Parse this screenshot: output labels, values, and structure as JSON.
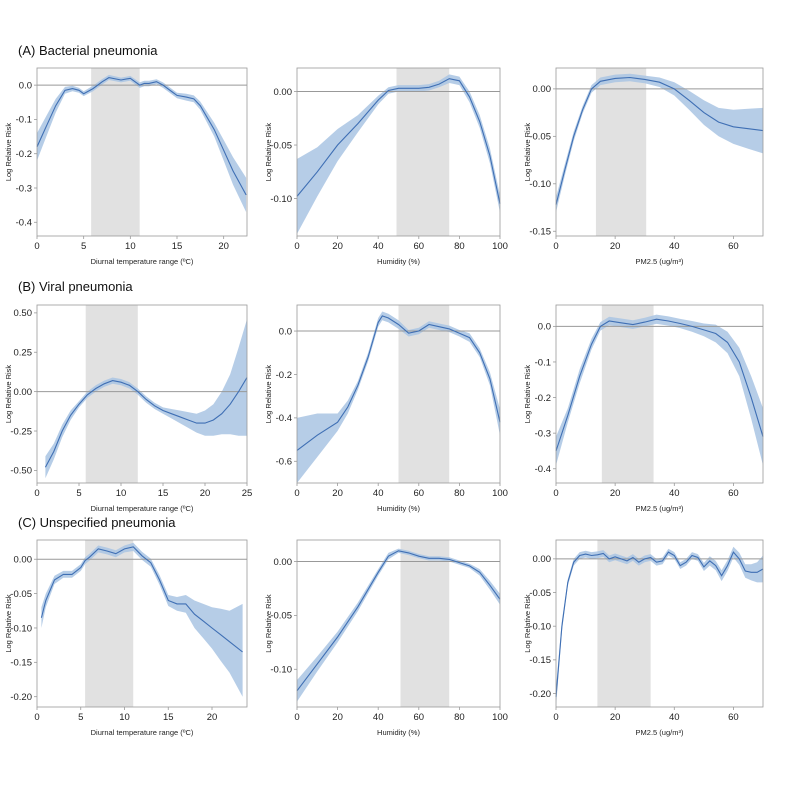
{
  "row_titles": [
    "(A) Bacterial pneumonia",
    "(B) Viral pneumonia",
    "(C) Unspecified pneumonia"
  ],
  "colors": {
    "line": "#3f6fb4",
    "band": "#a9c4e3",
    "shade": "#e1e1e1",
    "ref": "#999999",
    "axis": "#999999"
  },
  "chart_data": [
    {
      "type": "line",
      "row": 0,
      "col": 0,
      "xlabel": "Diurnal temperature range (ºC)",
      "ylabel": "Log Relative Risk",
      "xlim": [
        0,
        22.5
      ],
      "ylim": [
        -0.44,
        0.05
      ],
      "xticks": [
        0,
        5,
        10,
        15,
        20
      ],
      "yticks": [
        0.0,
        -0.1,
        -0.2,
        -0.3,
        -0.4
      ],
      "shaded_region": [
        5.8,
        11
      ],
      "x": [
        0,
        1,
        2,
        3,
        3.8,
        4.5,
        5,
        6,
        7,
        7.7,
        9,
        10,
        11,
        11.5,
        12,
        12.8,
        13.5,
        14.5,
        15,
        16,
        16.8,
        17.5,
        19,
        20,
        21,
        22.4
      ],
      "y": [
        -0.18,
        -0.12,
        -0.06,
        -0.015,
        -0.01,
        -0.015,
        -0.025,
        -0.01,
        0.01,
        0.022,
        0.015,
        0.02,
        0.0,
        0.005,
        0.005,
        0.01,
        0.0,
        -0.02,
        -0.03,
        -0.035,
        -0.04,
        -0.06,
        -0.13,
        -0.19,
        -0.25,
        -0.32
      ],
      "lower": [
        -0.22,
        -0.15,
        -0.08,
        -0.025,
        -0.018,
        -0.022,
        -0.032,
        -0.018,
        0.002,
        0.015,
        0.008,
        0.013,
        -0.008,
        -0.003,
        -0.003,
        0.003,
        -0.008,
        -0.028,
        -0.038,
        -0.045,
        -0.05,
        -0.072,
        -0.15,
        -0.22,
        -0.29,
        -0.37
      ],
      "upper": [
        -0.14,
        -0.09,
        -0.04,
        -0.005,
        -0.002,
        -0.008,
        -0.018,
        -0.002,
        0.018,
        0.03,
        0.022,
        0.027,
        0.008,
        0.013,
        0.013,
        0.017,
        0.008,
        -0.012,
        -0.022,
        -0.025,
        -0.03,
        -0.048,
        -0.11,
        -0.16,
        -0.21,
        -0.27
      ]
    },
    {
      "type": "line",
      "row": 0,
      "col": 1,
      "xlabel": "Humidity (%)",
      "ylabel": "Log Relative Risk",
      "xlim": [
        0,
        100
      ],
      "ylim": [
        -0.135,
        0.022
      ],
      "xticks": [
        0,
        20,
        40,
        60,
        80,
        100
      ],
      "yticks": [
        0.0,
        -0.05,
        -0.1
      ],
      "shaded_region": [
        49,
        75
      ],
      "x": [
        0,
        10,
        20,
        30,
        40,
        45,
        50,
        55,
        60,
        65,
        70,
        75,
        80,
        85,
        90,
        95,
        100
      ],
      "y": [
        -0.098,
        -0.075,
        -0.05,
        -0.03,
        -0.008,
        0.001,
        0.003,
        0.003,
        0.003,
        0.004,
        0.007,
        0.012,
        0.01,
        -0.005,
        -0.028,
        -0.06,
        -0.105
      ],
      "lower": [
        -0.133,
        -0.098,
        -0.065,
        -0.038,
        -0.012,
        -0.002,
        0.0,
        0.0,
        0.0,
        0.001,
        0.004,
        0.008,
        0.006,
        -0.01,
        -0.034,
        -0.067,
        -0.113
      ],
      "upper": [
        -0.063,
        -0.052,
        -0.035,
        -0.022,
        -0.004,
        0.004,
        0.006,
        0.006,
        0.006,
        0.007,
        0.01,
        0.016,
        0.014,
        0.0,
        -0.022,
        -0.053,
        -0.097
      ]
    },
    {
      "type": "line",
      "row": 0,
      "col": 2,
      "xlabel": "PM2.5 (ug/m³)",
      "ylabel": "Log Relative Risk",
      "xlim": [
        0,
        70
      ],
      "ylim": [
        -0.155,
        0.022
      ],
      "xticks": [
        0,
        20,
        40,
        60
      ],
      "yticks": [
        0.0,
        -0.05,
        -0.1,
        -0.15
      ],
      "shaded_region": [
        13.5,
        30.5
      ],
      "x": [
        0,
        3,
        6,
        9,
        12,
        15,
        20,
        25,
        30,
        35,
        40,
        45,
        50,
        55,
        60,
        65,
        70
      ],
      "y": [
        -0.122,
        -0.085,
        -0.05,
        -0.022,
        0.0,
        0.008,
        0.011,
        0.012,
        0.01,
        0.007,
        0.0,
        -0.012,
        -0.025,
        -0.035,
        -0.04,
        -0.042,
        -0.044
      ],
      "lower": [
        -0.13,
        -0.091,
        -0.055,
        -0.026,
        -0.004,
        0.004,
        0.007,
        0.008,
        0.006,
        0.002,
        -0.007,
        -0.022,
        -0.038,
        -0.05,
        -0.058,
        -0.063,
        -0.068
      ],
      "upper": [
        -0.114,
        -0.079,
        -0.045,
        -0.018,
        0.004,
        0.012,
        0.015,
        0.016,
        0.014,
        0.012,
        0.007,
        -0.002,
        -0.012,
        -0.02,
        -0.022,
        -0.021,
        -0.02
      ]
    },
    {
      "type": "line",
      "row": 1,
      "col": 0,
      "xlabel": "Diurnal temperature range (ºC)",
      "ylabel": "Log Relative Risk",
      "xlim": [
        0,
        25
      ],
      "ylim": [
        -0.58,
        0.55
      ],
      "xticks": [
        0,
        5,
        10,
        15,
        20,
        25
      ],
      "yticks": [
        0.5,
        0.25,
        0.0,
        -0.25,
        -0.5
      ],
      "shaded_region": [
        5.8,
        12
      ],
      "x": [
        1,
        2,
        3,
        4,
        5,
        6,
        7,
        8,
        9,
        10,
        11,
        12,
        13,
        14,
        15,
        16,
        17,
        18,
        19,
        20,
        21,
        22,
        23,
        24,
        25
      ],
      "y": [
        -0.48,
        -0.38,
        -0.25,
        -0.15,
        -0.08,
        -0.02,
        0.02,
        0.05,
        0.07,
        0.06,
        0.04,
        0.0,
        -0.05,
        -0.09,
        -0.12,
        -0.14,
        -0.16,
        -0.18,
        -0.2,
        -0.2,
        -0.18,
        -0.14,
        -0.08,
        0.0,
        0.09
      ],
      "lower": [
        -0.55,
        -0.43,
        -0.29,
        -0.18,
        -0.1,
        -0.04,
        0.0,
        0.03,
        0.05,
        0.04,
        0.02,
        -0.02,
        -0.07,
        -0.11,
        -0.14,
        -0.17,
        -0.2,
        -0.23,
        -0.26,
        -0.28,
        -0.28,
        -0.27,
        -0.27,
        -0.28,
        -0.28
      ],
      "upper": [
        -0.41,
        -0.33,
        -0.21,
        -0.12,
        -0.06,
        0.0,
        0.04,
        0.07,
        0.09,
        0.08,
        0.06,
        0.02,
        -0.03,
        -0.07,
        -0.1,
        -0.11,
        -0.12,
        -0.13,
        -0.14,
        -0.12,
        -0.08,
        0.0,
        0.11,
        0.28,
        0.46
      ]
    },
    {
      "type": "line",
      "row": 1,
      "col": 1,
      "xlabel": "Humidity (%)",
      "ylabel": "Log Relative Risk",
      "xlim": [
        0,
        100
      ],
      "ylim": [
        -0.7,
        0.12
      ],
      "xticks": [
        0,
        20,
        40,
        60,
        80,
        100
      ],
      "yticks": [
        0.0,
        -0.2,
        -0.4,
        -0.6
      ],
      "shaded_region": [
        50,
        75
      ],
      "x": [
        0,
        10,
        20,
        25,
        30,
        35,
        40,
        42,
        45,
        50,
        55,
        60,
        65,
        70,
        75,
        80,
        85,
        90,
        95,
        100
      ],
      "y": [
        -0.55,
        -0.48,
        -0.42,
        -0.35,
        -0.25,
        -0.12,
        0.04,
        0.07,
        0.06,
        0.03,
        -0.01,
        0.0,
        0.03,
        0.02,
        0.01,
        -0.01,
        -0.03,
        -0.1,
        -0.22,
        -0.42
      ],
      "lower": [
        -0.7,
        -0.58,
        -0.46,
        -0.38,
        -0.27,
        -0.14,
        0.02,
        0.05,
        0.04,
        0.01,
        -0.025,
        -0.015,
        0.015,
        0.005,
        -0.005,
        -0.025,
        -0.05,
        -0.12,
        -0.25,
        -0.48
      ],
      "upper": [
        -0.4,
        -0.38,
        -0.38,
        -0.32,
        -0.23,
        -0.1,
        0.06,
        0.09,
        0.08,
        0.05,
        0.005,
        0.015,
        0.045,
        0.035,
        0.025,
        0.005,
        -0.01,
        -0.08,
        -0.19,
        -0.36
      ]
    },
    {
      "type": "line",
      "row": 1,
      "col": 2,
      "xlabel": "PM2.5 (ug/m³)",
      "ylabel": "Log Relative Risk",
      "xlim": [
        0,
        70
      ],
      "ylim": [
        -0.44,
        0.06
      ],
      "xticks": [
        0,
        20,
        40,
        60
      ],
      "yticks": [
        0.0,
        -0.1,
        -0.2,
        -0.3,
        -0.4
      ],
      "shaded_region": [
        15.5,
        33
      ],
      "x": [
        0,
        4,
        8,
        12,
        15,
        18,
        22,
        26,
        30,
        34,
        38,
        42,
        46,
        50,
        54,
        58,
        62,
        66,
        70
      ],
      "y": [
        -0.35,
        -0.25,
        -0.14,
        -0.05,
        0.0,
        0.015,
        0.01,
        0.005,
        0.012,
        0.02,
        0.015,
        0.008,
        0.0,
        -0.01,
        -0.02,
        -0.045,
        -0.1,
        -0.2,
        -0.31
      ],
      "lower": [
        -0.39,
        -0.27,
        -0.16,
        -0.065,
        -0.012,
        0.003,
        -0.002,
        -0.007,
        0.0,
        0.007,
        0.002,
        -0.005,
        -0.015,
        -0.028,
        -0.045,
        -0.075,
        -0.14,
        -0.26,
        -0.39
      ],
      "upper": [
        -0.31,
        -0.23,
        -0.12,
        -0.035,
        0.012,
        0.027,
        0.022,
        0.017,
        0.024,
        0.033,
        0.028,
        0.021,
        0.015,
        0.008,
        0.005,
        -0.015,
        -0.06,
        -0.14,
        -0.23
      ]
    },
    {
      "type": "line",
      "row": 2,
      "col": 0,
      "xlabel": "Diurnal temperature range (ºC)",
      "ylabel": "Log Relative Risk",
      "xlim": [
        0,
        24
      ],
      "ylim": [
        -0.215,
        0.028
      ],
      "xticks": [
        0,
        5,
        10,
        15,
        20
      ],
      "yticks": [
        0.0,
        -0.05,
        -0.1,
        -0.15,
        -0.2
      ],
      "shaded_region": [
        5.5,
        11
      ],
      "x": [
        0.5,
        1,
        2,
        3,
        4,
        5,
        5.5,
        6,
        7,
        8,
        9,
        10,
        11,
        12,
        13,
        14,
        15,
        16,
        17,
        18,
        19,
        20,
        21,
        22,
        23.5
      ],
      "y": [
        -0.085,
        -0.06,
        -0.03,
        -0.022,
        -0.022,
        -0.012,
        -0.002,
        0.003,
        0.015,
        0.012,
        0.008,
        0.015,
        0.018,
        0.005,
        -0.005,
        -0.03,
        -0.06,
        -0.065,
        -0.065,
        -0.08,
        -0.09,
        -0.1,
        -0.11,
        -0.12,
        -0.135
      ],
      "lower": [
        -0.1,
        -0.07,
        -0.036,
        -0.027,
        -0.027,
        -0.017,
        -0.007,
        -0.002,
        0.01,
        0.007,
        0.003,
        0.01,
        0.012,
        -0.001,
        -0.011,
        -0.037,
        -0.068,
        -0.075,
        -0.078,
        -0.1,
        -0.115,
        -0.13,
        -0.148,
        -0.165,
        -0.2
      ],
      "upper": [
        -0.07,
        -0.05,
        -0.024,
        -0.017,
        -0.017,
        -0.007,
        0.003,
        0.008,
        0.02,
        0.017,
        0.013,
        0.02,
        0.024,
        0.011,
        0.001,
        -0.023,
        -0.052,
        -0.055,
        -0.052,
        -0.06,
        -0.065,
        -0.07,
        -0.072,
        -0.075,
        -0.065
      ]
    },
    {
      "type": "line",
      "row": 2,
      "col": 1,
      "xlabel": "Humidity (%)",
      "ylabel": "Log Relative Risk",
      "xlim": [
        0,
        100
      ],
      "ylim": [
        -0.135,
        0.02
      ],
      "xticks": [
        0,
        20,
        40,
        60,
        80,
        100
      ],
      "yticks": [
        0.0,
        -0.05,
        -0.1
      ],
      "shaded_region": [
        51,
        75
      ],
      "x": [
        0,
        10,
        20,
        30,
        40,
        45,
        50,
        55,
        60,
        65,
        70,
        75,
        80,
        85,
        90,
        95,
        100
      ],
      "y": [
        -0.12,
        -0.095,
        -0.07,
        -0.042,
        -0.01,
        0.005,
        0.01,
        0.008,
        0.005,
        0.003,
        0.003,
        0.002,
        -0.001,
        -0.004,
        -0.01,
        -0.022,
        -0.035
      ],
      "lower": [
        -0.13,
        -0.102,
        -0.075,
        -0.046,
        -0.013,
        0.002,
        0.008,
        0.006,
        0.003,
        0.001,
        0.001,
        0.0,
        -0.003,
        -0.006,
        -0.013,
        -0.026,
        -0.04
      ],
      "upper": [
        -0.11,
        -0.088,
        -0.065,
        -0.038,
        -0.007,
        0.008,
        0.012,
        0.01,
        0.007,
        0.005,
        0.005,
        0.004,
        0.001,
        -0.002,
        -0.007,
        -0.018,
        -0.03
      ]
    },
    {
      "type": "line",
      "row": 2,
      "col": 2,
      "xlabel": "PM2.5 (ug/m³)",
      "ylabel": "Log Relative Risk",
      "xlim": [
        0,
        70
      ],
      "ylim": [
        -0.22,
        0.028
      ],
      "xticks": [
        0,
        20,
        40,
        60
      ],
      "yticks": [
        0.0,
        -0.05,
        -0.1,
        -0.15,
        -0.2
      ],
      "shaded_region": [
        14,
        32
      ],
      "x": [
        0,
        2,
        4,
        6,
        8,
        10,
        12,
        14,
        16,
        18,
        20,
        22,
        24,
        26,
        28,
        30,
        32,
        34,
        36,
        38,
        40,
        42,
        44,
        46,
        48,
        50,
        52,
        54,
        56,
        58,
        60,
        62,
        64,
        66,
        68,
        70
      ],
      "y": [
        -0.205,
        -0.1,
        -0.035,
        -0.005,
        0.005,
        0.007,
        0.005,
        0.006,
        0.008,
        0.0,
        0.003,
        0.0,
        -0.003,
        0.002,
        -0.005,
        0.0,
        0.002,
        -0.005,
        -0.003,
        0.01,
        0.005,
        -0.01,
        -0.005,
        0.005,
        0.002,
        -0.012,
        -0.003,
        -0.01,
        -0.025,
        -0.01,
        0.01,
        0.0,
        -0.018,
        -0.02,
        -0.02,
        -0.015
      ],
      "lower": [
        -0.22,
        -0.108,
        -0.04,
        -0.01,
        0.0,
        0.002,
        0.0,
        0.001,
        0.003,
        -0.005,
        -0.002,
        -0.005,
        -0.008,
        -0.003,
        -0.01,
        -0.005,
        -0.003,
        -0.01,
        -0.008,
        0.005,
        0.0,
        -0.015,
        -0.01,
        0.0,
        -0.003,
        -0.018,
        -0.01,
        -0.017,
        -0.033,
        -0.018,
        0.002,
        -0.009,
        -0.028,
        -0.032,
        -0.035,
        -0.035
      ],
      "upper": [
        -0.19,
        -0.092,
        -0.03,
        0.0,
        0.01,
        0.012,
        0.01,
        0.011,
        0.013,
        0.005,
        0.008,
        0.005,
        0.002,
        0.007,
        0.0,
        0.005,
        0.007,
        0.0,
        0.002,
        0.015,
        0.01,
        -0.005,
        0.0,
        0.01,
        0.007,
        -0.006,
        0.004,
        -0.003,
        -0.017,
        -0.002,
        0.018,
        0.009,
        -0.008,
        -0.008,
        -0.005,
        0.005
      ]
    }
  ]
}
